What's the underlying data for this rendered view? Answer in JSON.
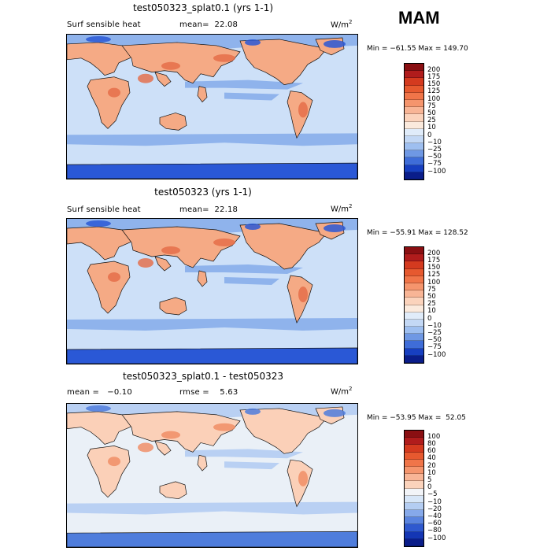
{
  "season": "MAM",
  "panels": [
    {
      "title": "test050323_splat0.1 (yrs 1-1)",
      "left_text": "Surf sensible heat",
      "stat_text": "mean=  22.08",
      "units": "W/m",
      "units_exp": "2",
      "minmax": "Min = −61.55 Max = 149.70",
      "colorbar": {
        "labels": [
          "200",
          "175",
          "150",
          "125",
          "100",
          "75",
          "50",
          "25",
          "10",
          "0",
          "−10",
          "−25",
          "−50",
          "−75",
          "−100"
        ],
        "colors": [
          "#8a0f12",
          "#b01c1c",
          "#d43a1f",
          "#e6592f",
          "#f07549",
          "#f5956d",
          "#f8b596",
          "#fbd3bc",
          "#fbeadd",
          "#e0ecfa",
          "#c3d8f5",
          "#9ebff0",
          "#6f98e4",
          "#3f6dd8",
          "#173fc0",
          "#0a1d8a"
        ]
      },
      "palette": {
        "land": "#f5aa85",
        "hot": "#e56a45",
        "ocean": "#cde0f8",
        "cool": "#8fb3ec",
        "cold": "#2a58d6"
      }
    },
    {
      "title": "test050323 (yrs 1-1)",
      "left_text": "Surf sensible heat",
      "stat_text": "mean=  22.18",
      "units": "W/m",
      "units_exp": "2",
      "minmax": "Min = −55.91 Max = 128.52",
      "colorbar": {
        "labels": [
          "200",
          "175",
          "150",
          "125",
          "100",
          "75",
          "50",
          "25",
          "10",
          "0",
          "−10",
          "−25",
          "−50",
          "−75",
          "−100"
        ],
        "colors": [
          "#8a0f12",
          "#b01c1c",
          "#d43a1f",
          "#e6592f",
          "#f07549",
          "#f5956d",
          "#f8b596",
          "#fbd3bc",
          "#fbeadd",
          "#e0ecfa",
          "#c3d8f5",
          "#9ebff0",
          "#6f98e4",
          "#3f6dd8",
          "#173fc0",
          "#0a1d8a"
        ]
      },
      "palette": {
        "land": "#f5aa85",
        "hot": "#e56a45",
        "ocean": "#cde0f8",
        "cool": "#8fb3ec",
        "cold": "#2a58d6"
      }
    },
    {
      "title": "test050323_splat0.1 - test050323",
      "left_text": "mean =   −0.10",
      "stat_text": "rmse =    5.63",
      "units": "W/m",
      "units_exp": "2",
      "minmax": "Min = −53.95 Max =  52.05",
      "colorbar": {
        "labels": [
          "100",
          "80",
          "60",
          "40",
          "20",
          "10",
          "5",
          "0",
          "−5",
          "−10",
          "−20",
          "−40",
          "−60",
          "−80",
          "−100"
        ],
        "colors": [
          "#8a0f12",
          "#b01c1c",
          "#d43a1f",
          "#e6592f",
          "#f07549",
          "#f5956d",
          "#f8b596",
          "#fbd3bc",
          "#f2f4f8",
          "#d7e6f8",
          "#b4cdf2",
          "#86a9ea",
          "#5a84df",
          "#2f59cf",
          "#1436b4",
          "#0a1d8a"
        ]
      },
      "palette": {
        "land": "#fbd0b8",
        "hot": "#f08a60",
        "ocean": "#eaf0f7",
        "cool": "#b9d0f3",
        "cold": "#4f7ddc"
      }
    }
  ]
}
